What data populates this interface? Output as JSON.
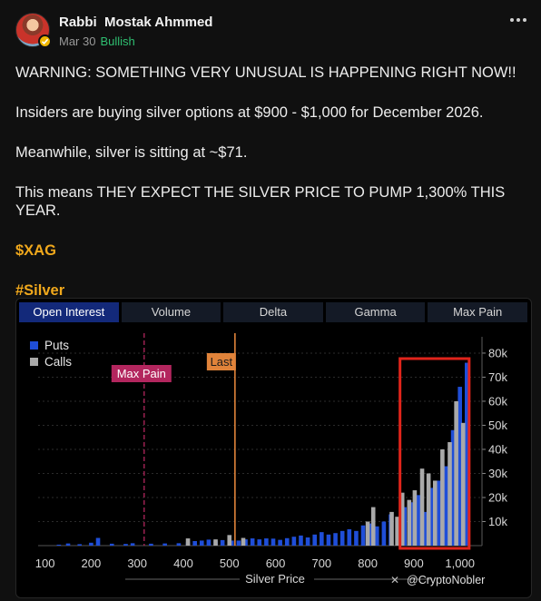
{
  "post": {
    "author": "Rabbi  Mostak Ahmmed",
    "date": "Mar 30",
    "sentiment": "Bullish",
    "lines": [
      "WARNING: SOMETHING VERY UNUSUAL IS HAPPENING RIGHT NOW!!",
      "Insiders are buying silver options at $900 - $1,000 for December 2026.",
      "Meanwhile, silver is sitting at ~$71.",
      "This means THEY EXPECT THE SILVER PRICE TO PUMP 1,300% THIS YEAR."
    ],
    "cashtag": "$XAG",
    "hashtag": "#Silver"
  },
  "chart": {
    "tabs": [
      "Open Interest",
      "Volume",
      "Delta",
      "Gamma",
      "Max Pain"
    ],
    "active_tab": "Open Interest",
    "legend": {
      "puts": "Puts",
      "calls": "Calls"
    },
    "markers": {
      "max_pain": "Max Pain",
      "last": "Last"
    },
    "watermark": "@CryptoNobler",
    "colors": {
      "puts": "#1f4ed8",
      "calls": "#a9a9a9",
      "highlight": "#e0241b",
      "max_pain": "#b3265e",
      "last": "#e0833a"
    }
  },
  "chart_data": {
    "type": "bar",
    "xlabel": "Silver Price",
    "xlim": [
      85,
      1040
    ],
    "ylim": [
      0,
      83000
    ],
    "x_ticks": [
      100,
      200,
      300,
      400,
      500,
      600,
      700,
      800,
      900,
      "1,000"
    ],
    "y_ticks": [
      "10k",
      "20k",
      "30k",
      "40k",
      "50k",
      "60k",
      "70k",
      "80k"
    ],
    "markers": {
      "max_pain_x": 315,
      "last_x": 512
    },
    "highlight_range_x": [
      870,
      1020
    ],
    "series": [
      {
        "name": "Puts",
        "points": [
          [
            130,
            400
          ],
          [
            150,
            900
          ],
          [
            175,
            600
          ],
          [
            200,
            1200
          ],
          [
            215,
            3200
          ],
          [
            245,
            800
          ],
          [
            275,
            700
          ],
          [
            290,
            1000
          ],
          [
            330,
            800
          ],
          [
            360,
            900
          ],
          [
            390,
            1000
          ],
          [
            410,
            1400
          ],
          [
            425,
            1900
          ],
          [
            440,
            2100
          ],
          [
            455,
            2500
          ],
          [
            470,
            2000
          ],
          [
            485,
            2300
          ],
          [
            505,
            2100
          ],
          [
            520,
            2100
          ],
          [
            535,
            2600
          ],
          [
            550,
            3000
          ],
          [
            565,
            2600
          ],
          [
            580,
            3000
          ],
          [
            595,
            2900
          ],
          [
            610,
            2400
          ],
          [
            625,
            3100
          ],
          [
            640,
            3700
          ],
          [
            655,
            4200
          ],
          [
            670,
            3400
          ],
          [
            685,
            4600
          ],
          [
            700,
            5600
          ],
          [
            715,
            4600
          ],
          [
            730,
            5200
          ],
          [
            745,
            6100
          ],
          [
            760,
            6800
          ],
          [
            775,
            6100
          ],
          [
            790,
            8400
          ],
          [
            805,
            9200
          ],
          [
            820,
            8000
          ],
          [
            835,
            10000
          ],
          [
            850,
            13000
          ],
          [
            865,
            11000
          ],
          [
            880,
            16000
          ],
          [
            895,
            18000
          ],
          [
            910,
            21000
          ],
          [
            925,
            14000
          ],
          [
            940,
            24000
          ],
          [
            955,
            27000
          ],
          [
            970,
            33000
          ],
          [
            985,
            48000
          ],
          [
            1000,
            66000
          ],
          [
            1015,
            76000
          ]
        ]
      },
      {
        "name": "Calls",
        "points": [
          [
            410,
            3000
          ],
          [
            470,
            2600
          ],
          [
            500,
            4400
          ],
          [
            530,
            3200
          ],
          [
            800,
            10000
          ],
          [
            812,
            16000
          ],
          [
            852,
            14000
          ],
          [
            864,
            12000
          ],
          [
            875,
            22000
          ],
          [
            890,
            19000
          ],
          [
            902,
            23000
          ],
          [
            918,
            32000
          ],
          [
            932,
            30000
          ],
          [
            946,
            27000
          ],
          [
            962,
            40000
          ],
          [
            978,
            43000
          ],
          [
            992,
            60000
          ],
          [
            1007,
            51000
          ]
        ]
      }
    ]
  }
}
